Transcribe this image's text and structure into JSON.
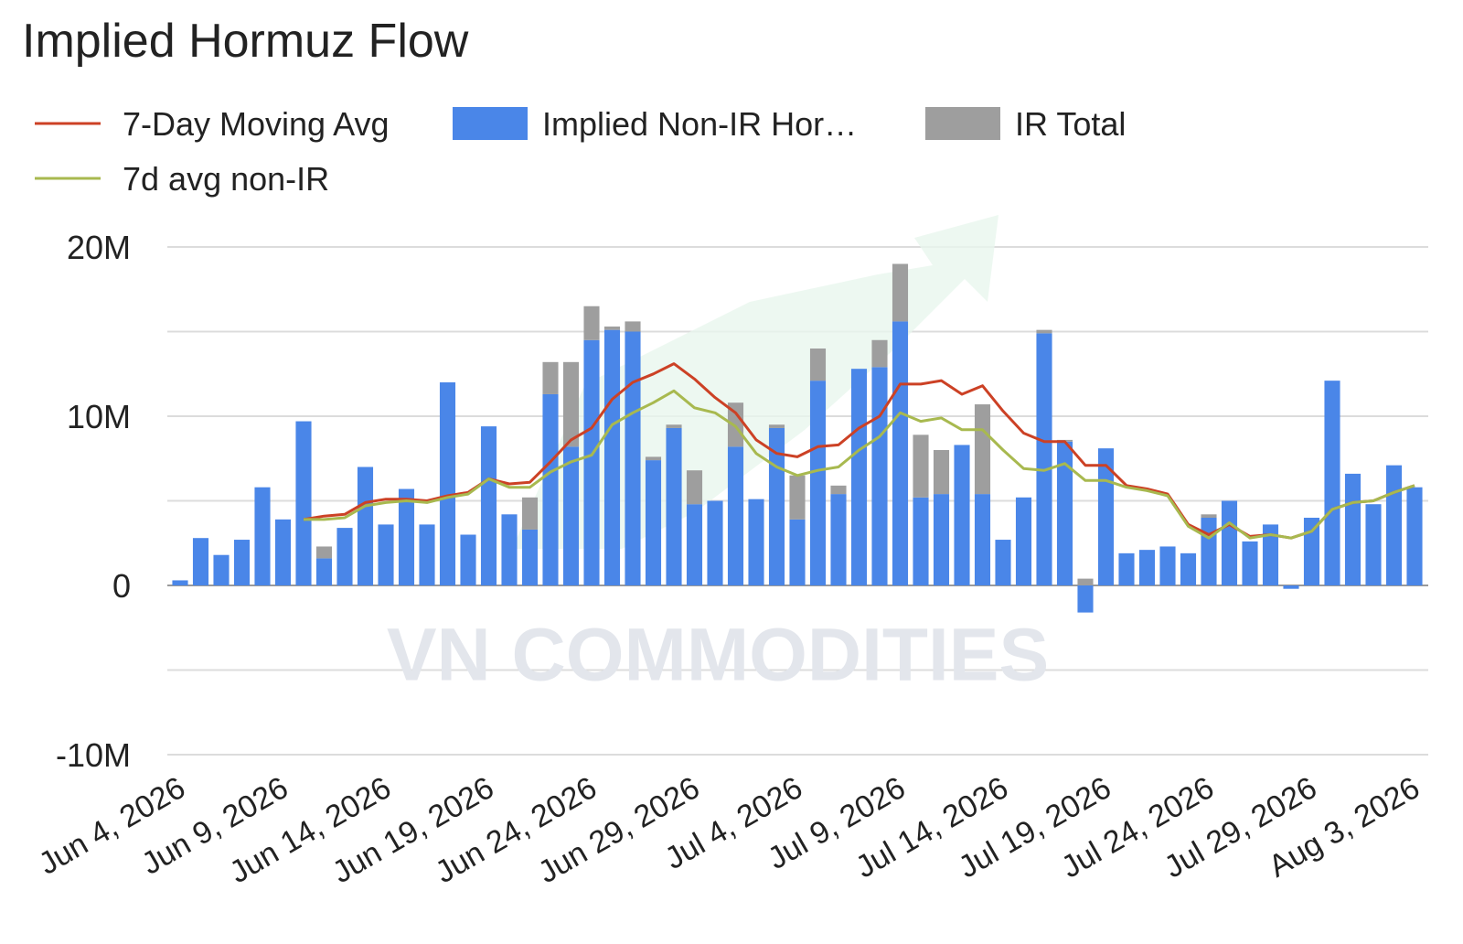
{
  "chart_data": {
    "type": "bar",
    "title": "Implied Hormuz Flow",
    "watermark": "VN COMMODITIES",
    "stacked": true,
    "grid": true,
    "categories": [
      "Jun 4, 2026",
      null,
      null,
      null,
      null,
      "Jun 9, 2026",
      null,
      null,
      null,
      null,
      "Jun 14, 2026",
      null,
      null,
      null,
      null,
      "Jun 19, 2026",
      null,
      null,
      null,
      null,
      "Jun 24, 2026",
      null,
      null,
      null,
      null,
      "Jun 29, 2026",
      null,
      null,
      null,
      null,
      "Jul 4, 2026",
      null,
      null,
      null,
      null,
      "Jul 9, 2026",
      null,
      null,
      null,
      null,
      "Jul 14, 2026",
      null,
      null,
      null,
      null,
      "Jul 19, 2026",
      null,
      null,
      null,
      null,
      "Jul 24, 2026",
      null,
      null,
      null,
      null,
      "Jul 29, 2026",
      null,
      null,
      null,
      null,
      "Aug 3, 2026"
    ],
    "ylim": [
      -10000000,
      20000000
    ],
    "yticks": [
      {
        "value": 20000000,
        "label": "20M"
      },
      {
        "value": 10000000,
        "label": "10M"
      },
      0,
      {
        "value": -10000000,
        "label": "-10M"
      }
    ],
    "minor_yticks": [
      15000000,
      5000000,
      -5000000
    ],
    "series": [
      {
        "name": "7-Day Moving Avg",
        "type": "line",
        "color": "#cc4125",
        "values": [
          null,
          null,
          null,
          null,
          null,
          null,
          3900000,
          4100000,
          4200000,
          4900000,
          5100000,
          5100000,
          5000000,
          5300000,
          5500000,
          6300000,
          6000000,
          6100000,
          7300000,
          8600000,
          9300000,
          11000000,
          12000000,
          12500000,
          13100000,
          12200000,
          11100000,
          10200000,
          8600000,
          7800000,
          7600000,
          8200000,
          8300000,
          9300000,
          10000000,
          11900000,
          11900000,
          12100000,
          11300000,
          11800000,
          10300000,
          9000000,
          8500000,
          8500000,
          7100000,
          7100000,
          5900000,
          5700000,
          5400000,
          3600000,
          3000000,
          3600000,
          2900000,
          3000000,
          2800000,
          3200000,
          4500000,
          4900000,
          5000000,
          5500000,
          5900000
        ]
      },
      {
        "name": "Implied Non-IR Hor…",
        "type": "bar",
        "color": "#4a86e8",
        "values": [
          300000,
          2800000,
          1800000,
          2700000,
          5800000,
          3900000,
          9700000,
          1600000,
          3400000,
          7000000,
          3600000,
          5700000,
          3600000,
          12000000,
          3000000,
          9400000,
          4200000,
          3300000,
          11300000,
          8200000,
          14500000,
          15100000,
          15000000,
          7400000,
          9300000,
          4800000,
          5000000,
          8200000,
          5100000,
          9300000,
          3900000,
          12100000,
          5400000,
          12800000,
          12900000,
          15600000,
          5200000,
          5400000,
          8300000,
          5400000,
          2700000,
          5200000,
          14900000,
          8500000,
          -1600000,
          8100000,
          1900000,
          2100000,
          2300000,
          1900000,
          4000000,
          5000000,
          2600000,
          3600000,
          -200000,
          4000000,
          12100000,
          6600000,
          4800000,
          7100000,
          5800000
        ]
      },
      {
        "name": "IR Total",
        "type": "bar",
        "color": "#9e9e9e",
        "values": [
          0,
          0,
          0,
          0,
          0,
          0,
          0,
          700000,
          0,
          0,
          0,
          0,
          0,
          0,
          0,
          0,
          0,
          1900000,
          1900000,
          5000000,
          2000000,
          200000,
          600000,
          200000,
          200000,
          2000000,
          0,
          2600000,
          0,
          200000,
          2600000,
          1900000,
          500000,
          0,
          1600000,
          3400000,
          3700000,
          2600000,
          0,
          5300000,
          0,
          0,
          200000,
          100000,
          400000,
          0,
          0,
          0,
          0,
          0,
          200000,
          0,
          0,
          0,
          0,
          0,
          0,
          0,
          0,
          0,
          0
        ]
      },
      {
        "name": "7d avg non-IR",
        "type": "line",
        "color": "#a8b94f",
        "values": [
          null,
          null,
          null,
          null,
          null,
          null,
          3900000,
          3900000,
          4000000,
          4700000,
          4900000,
          5000000,
          4900000,
          5200000,
          5400000,
          6300000,
          5800000,
          5800000,
          6700000,
          7300000,
          7700000,
          9500000,
          10200000,
          10800000,
          11500000,
          10500000,
          10200000,
          9400000,
          7800000,
          7000000,
          6500000,
          6800000,
          7000000,
          8000000,
          8800000,
          10200000,
          9700000,
          9900000,
          9200000,
          9200000,
          8000000,
          6900000,
          6800000,
          7200000,
          6200000,
          6200000,
          5800000,
          5600000,
          5300000,
          3500000,
          2800000,
          3700000,
          2800000,
          3000000,
          2800000,
          3200000,
          4500000,
          4900000,
          5000000,
          5500000,
          5900000
        ]
      }
    ]
  }
}
